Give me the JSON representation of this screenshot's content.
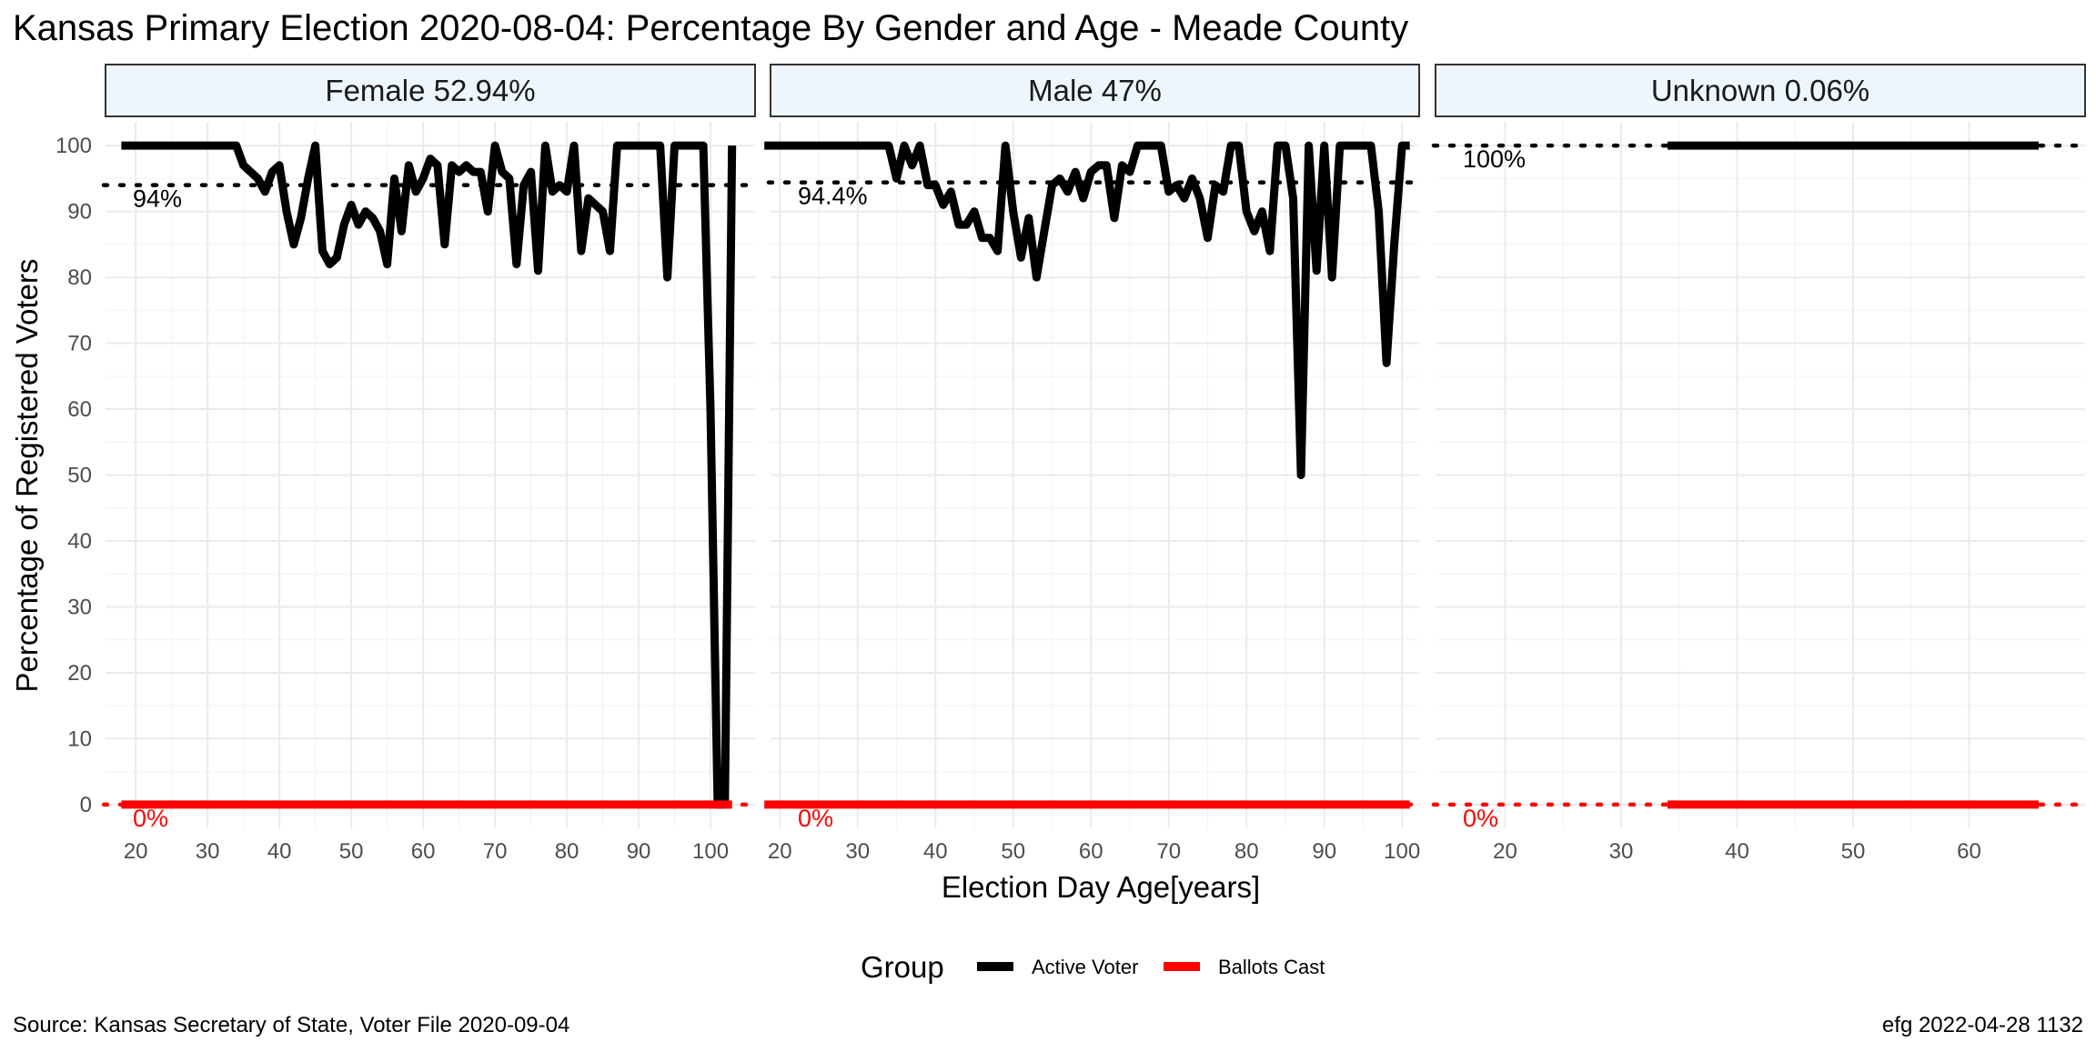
{
  "title": "Kansas Primary Election 2020-08-04:  Percentage By Gender and Age - Meade County",
  "caption_left": "Source:  Kansas Secretary of State, Voter File  2020-09-04",
  "caption_right": "efg 2022-04-28 1132",
  "colors": {
    "active": "#000000",
    "ballots": "#ff0000",
    "strip_fill": "#eef6fd",
    "grid": "#ebebeb"
  },
  "chart_data": {
    "type": "line",
    "xlabel": "Election Day Age[years]",
    "ylabel": "Percentage of Registered Voters",
    "ylim": [
      0,
      100
    ],
    "yticks": [
      0,
      10,
      20,
      30,
      40,
      50,
      60,
      70,
      80,
      90,
      100
    ],
    "grid": true,
    "legend": {
      "title": "Group",
      "position": "bottom",
      "items": [
        "Active Voter",
        "Ballots Cast"
      ]
    },
    "panels": [
      {
        "strip": "Female 52.94%",
        "xlim": [
          15.8,
          106.2
        ],
        "xticks": [
          20,
          30,
          40,
          50,
          60,
          70,
          80,
          90,
          100
        ],
        "ref_lines": [
          {
            "y": 94,
            "label": "94%",
            "color": "#000000"
          },
          {
            "y": 0,
            "label": "0%",
            "color": "#ff0000"
          }
        ],
        "series": [
          {
            "name": "Active Voter",
            "x": [
              18,
              19,
              20,
              21,
              22,
              23,
              24,
              25,
              26,
              27,
              28,
              29,
              30,
              31,
              32,
              33,
              34,
              35,
              36,
              37,
              38,
              39,
              40,
              41,
              42,
              43,
              44,
              45,
              46,
              47,
              48,
              49,
              50,
              51,
              52,
              53,
              54,
              55,
              56,
              57,
              58,
              59,
              60,
              61,
              62,
              63,
              64,
              65,
              66,
              67,
              68,
              69,
              70,
              71,
              72,
              73,
              74,
              75,
              76,
              77,
              78,
              79,
              80,
              81,
              82,
              83,
              84,
              85,
              86,
              87,
              88,
              89,
              90,
              91,
              92,
              93,
              94,
              95,
              96,
              97,
              98,
              99,
              100,
              101,
              102,
              103
            ],
            "y": [
              100,
              100,
              100,
              100,
              100,
              100,
              100,
              100,
              100,
              100,
              100,
              100,
              100,
              100,
              100,
              100,
              100,
              97,
              96,
              95,
              93,
              96,
              97,
              90,
              85,
              89,
              95,
              100,
              84,
              82,
              83,
              88,
              91,
              88,
              90,
              89,
              87,
              82,
              95,
              87,
              97,
              93,
              95,
              98,
              97,
              85,
              97,
              96,
              97,
              96,
              96,
              90,
              100,
              96,
              95,
              82,
              94,
              96,
              81,
              100,
              93,
              94,
              93,
              100,
              84,
              92,
              91,
              90,
              84,
              100,
              100,
              100,
              100,
              100,
              100,
              100,
              80,
              100,
              100,
              100,
              100,
              100,
              60,
              0,
              0,
              100
            ]
          },
          {
            "name": "Ballots Cast",
            "x": [
              18,
              103
            ],
            "y": [
              0,
              0
            ]
          }
        ]
      },
      {
        "strip": "Male 47%",
        "xlim": [
          18.8,
          102.2
        ],
        "xticks": [
          20,
          30,
          40,
          50,
          60,
          70,
          80,
          90,
          100
        ],
        "ref_lines": [
          {
            "y": 94.4,
            "label": "94.4%",
            "color": "#000000"
          },
          {
            "y": 0,
            "label": "0%",
            "color": "#ff0000"
          }
        ],
        "series": [
          {
            "name": "Active Voter",
            "x": [
              18,
              19,
              20,
              21,
              22,
              23,
              24,
              25,
              26,
              27,
              28,
              29,
              30,
              31,
              32,
              33,
              34,
              35,
              36,
              37,
              38,
              39,
              40,
              41,
              42,
              43,
              44,
              45,
              46,
              47,
              48,
              49,
              50,
              51,
              52,
              53,
              54,
              55,
              56,
              57,
              58,
              59,
              60,
              61,
              62,
              63,
              64,
              65,
              66,
              67,
              68,
              69,
              70,
              71,
              72,
              73,
              74,
              75,
              76,
              77,
              78,
              79,
              80,
              81,
              82,
              83,
              84,
              85,
              86,
              87,
              88,
              89,
              90,
              91,
              92,
              93,
              94,
              95,
              96,
              97,
              98,
              99,
              100,
              101
            ],
            "y": [
              100,
              100,
              100,
              100,
              100,
              100,
              100,
              100,
              100,
              100,
              100,
              100,
              100,
              100,
              100,
              100,
              100,
              95,
              100,
              97,
              100,
              94,
              94,
              91,
              93,
              88,
              88,
              90,
              86,
              86,
              84,
              100,
              90,
              83,
              89,
              80,
              87,
              94,
              95,
              93,
              96,
              92,
              96,
              97,
              97,
              89,
              97,
              96,
              100,
              100,
              100,
              100,
              93,
              94,
              92,
              95,
              92,
              86,
              94,
              93,
              100,
              100,
              90,
              87,
              90,
              84,
              100,
              100,
              92,
              50,
              100,
              81,
              100,
              80,
              100,
              100,
              100,
              100,
              100,
              90,
              67,
              85,
              100,
              100
            ]
          },
          {
            "name": "Ballots Cast",
            "x": [
              18,
              101
            ],
            "y": [
              0,
              0
            ]
          }
        ]
      },
      {
        "strip": "Unknown 0.06%",
        "xlim": [
          14,
          70
        ],
        "xticks": [
          20,
          30,
          40,
          50,
          60
        ],
        "ref_lines": [
          {
            "y": 100,
            "label": "100%",
            "color": "#000000"
          },
          {
            "y": 0,
            "label": "0%",
            "color": "#ff0000"
          }
        ],
        "series": [
          {
            "name": "Active Voter",
            "x": [
              34,
              66
            ],
            "y": [
              100,
              100
            ]
          },
          {
            "name": "Ballots Cast",
            "x": [
              34,
              66
            ],
            "y": [
              0,
              0
            ]
          }
        ]
      }
    ]
  }
}
